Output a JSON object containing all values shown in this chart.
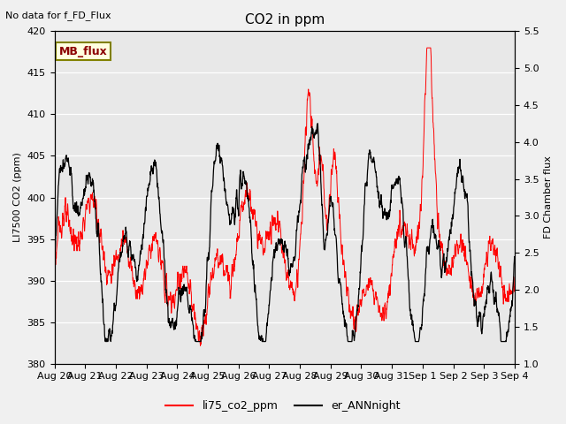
{
  "title": "CO2 in ppm",
  "top_left_text": "No data for f_FD_Flux",
  "ylabel_left": "LI7500 CO2 (ppm)",
  "ylabel_right": "FD Chamber flux",
  "ylim_left": [
    380,
    420
  ],
  "ylim_right": [
    1.0,
    5.5
  ],
  "legend_box_label": "MB_flux",
  "legend_labels": [
    "li75_co2_ppm",
    "er_ANNnight"
  ],
  "legend_line_colors": [
    "red",
    "black"
  ],
  "background_color": "#f0f0f0",
  "axes_facecolor": "#e8e8e8",
  "yticks_left": [
    380,
    385,
    390,
    395,
    400,
    405,
    410,
    415,
    420
  ],
  "yticks_right": [
    1.0,
    1.5,
    2.0,
    2.5,
    3.0,
    3.5,
    4.0,
    4.5,
    5.0,
    5.5
  ],
  "x_tick_labels": [
    "Aug 20",
    "Aug 21",
    "Aug 22",
    "Aug 23",
    "Aug 24",
    "Aug 25",
    "Aug 26",
    "Aug 27",
    "Aug 28",
    "Aug 29",
    "Aug 30",
    "Aug 31",
    "Sep 1",
    "Sep 2",
    "Sep 3",
    "Sep 4"
  ],
  "x_tick_positions": [
    0,
    1,
    2,
    3,
    4,
    5,
    6,
    7,
    8,
    9,
    10,
    11,
    12,
    13,
    14,
    15
  ]
}
